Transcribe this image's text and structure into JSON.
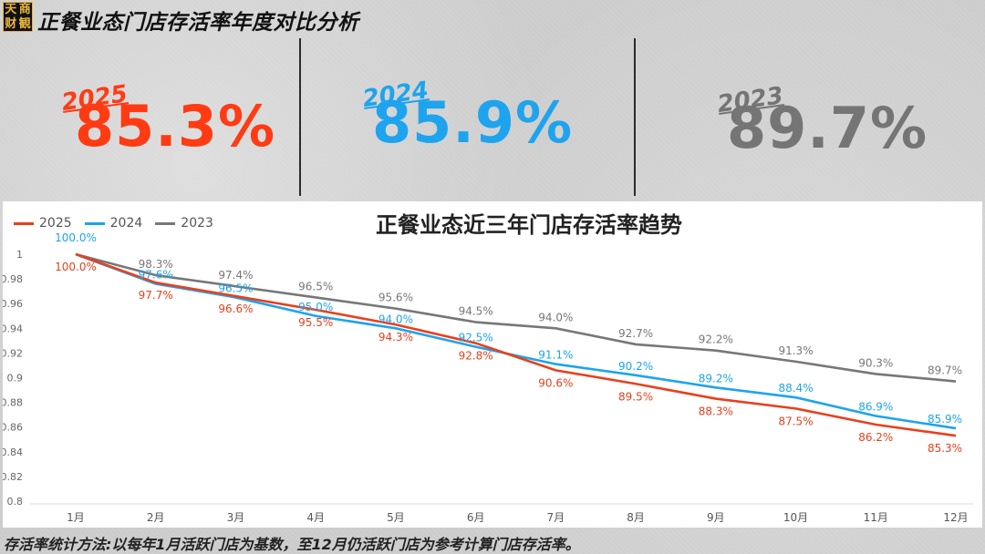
{
  "logo": {
    "chars": [
      "天",
      "商",
      "财",
      "観"
    ]
  },
  "header": {
    "title": "正餐业态门店存活率年度对比分析"
  },
  "kpis": [
    {
      "year": "2025",
      "value": "85.3%",
      "color": "#ff3b14"
    },
    {
      "year": "2024",
      "value": "85.9%",
      "color": "#1ea4ee"
    },
    {
      "year": "2023",
      "value": "89.7%",
      "color": "#757575"
    }
  ],
  "footnote": "存活率统计方法:以每年1月活跃门店为基数，至12月仍活跃门店为参考计算门店存活率。",
  "chart_data": {
    "type": "line",
    "title": "正餐业态近三年门店存活率趋势",
    "categories": [
      "1月",
      "2月",
      "3月",
      "4月",
      "5月",
      "6月",
      "7月",
      "8月",
      "9月",
      "10月",
      "11月",
      "12月"
    ],
    "ylim": [
      0.8,
      1.0
    ],
    "yticks": [
      1,
      0.98,
      0.96,
      0.94,
      0.92,
      0.9,
      0.88,
      0.86,
      0.84,
      0.82,
      0.8
    ],
    "legend_position": "top-left",
    "grid": false,
    "series": [
      {
        "name": "2025",
        "color": "#e8401c",
        "values": [
          1.0,
          0.977,
          0.966,
          0.955,
          0.943,
          0.928,
          0.906,
          0.895,
          0.883,
          0.875,
          0.862,
          0.853
        ],
        "labels": [
          "100.0%",
          "97.7%",
          "96.6%",
          "95.5%",
          "94.3%",
          "92.8%",
          "90.6%",
          "89.5%",
          "88.3%",
          "87.5%",
          "86.2%",
          "85.3%"
        ]
      },
      {
        "name": "2024",
        "color": "#1ea4ee",
        "values": [
          1.0,
          0.976,
          0.965,
          0.95,
          0.94,
          0.925,
          0.911,
          0.902,
          0.892,
          0.884,
          0.869,
          0.859
        ],
        "labels": [
          "100.0%",
          "97.6%",
          "96.5%",
          "95.0%",
          "94.0%",
          "92.5%",
          "91.1%",
          "90.2%",
          "89.2%",
          "88.4%",
          "86.9%",
          "85.9%"
        ]
      },
      {
        "name": "2023",
        "color": "#777777",
        "values": [
          1.0,
          0.983,
          0.974,
          0.965,
          0.956,
          0.945,
          0.94,
          0.927,
          0.922,
          0.913,
          0.903,
          0.897
        ],
        "labels": [
          "",
          "98.3%",
          "97.4%",
          "96.5%",
          "95.6%",
          "94.5%",
          "94.0%",
          "92.7%",
          "92.2%",
          "91.3%",
          "90.3%",
          "89.7%"
        ]
      }
    ]
  }
}
